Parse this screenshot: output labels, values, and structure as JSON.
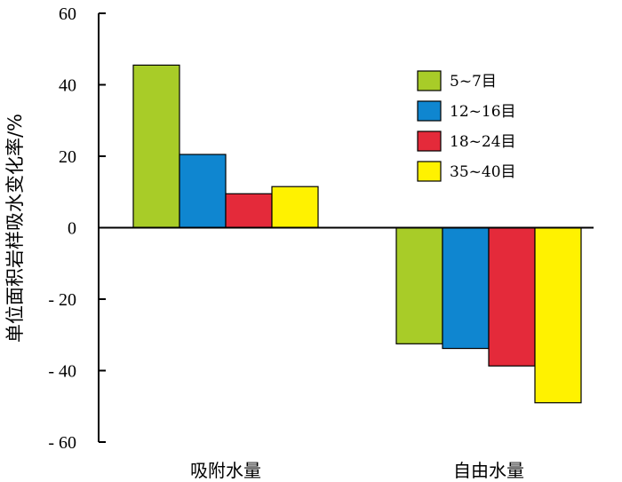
{
  "chart_data": {
    "type": "bar",
    "categories": [
      "吸附水量",
      "自由水量"
    ],
    "series": [
      {
        "name": "5~7目",
        "color": "#a8cc28",
        "values": [
          45.5,
          -32.5
        ]
      },
      {
        "name": "12~16目",
        "color": "#0f86d0",
        "values": [
          20.5,
          -33.8
        ]
      },
      {
        "name": "18~24目",
        "color": "#e42a3a",
        "values": [
          9.5,
          -38.7
        ]
      },
      {
        "name": "35~40目",
        "color": "#fff200",
        "values": [
          11.5,
          -49
        ]
      }
    ],
    "ylabel": "单位面积岩样吸水变化率/%",
    "ylim": [
      -60,
      60
    ],
    "yticks": [
      60,
      40,
      20,
      0,
      -20,
      -40,
      -60
    ],
    "ytick_labels": [
      "60",
      "40",
      "20",
      "0",
      "- 20",
      "- 40",
      "- 60"
    ],
    "legend_position": "top-right",
    "grid": false
  }
}
